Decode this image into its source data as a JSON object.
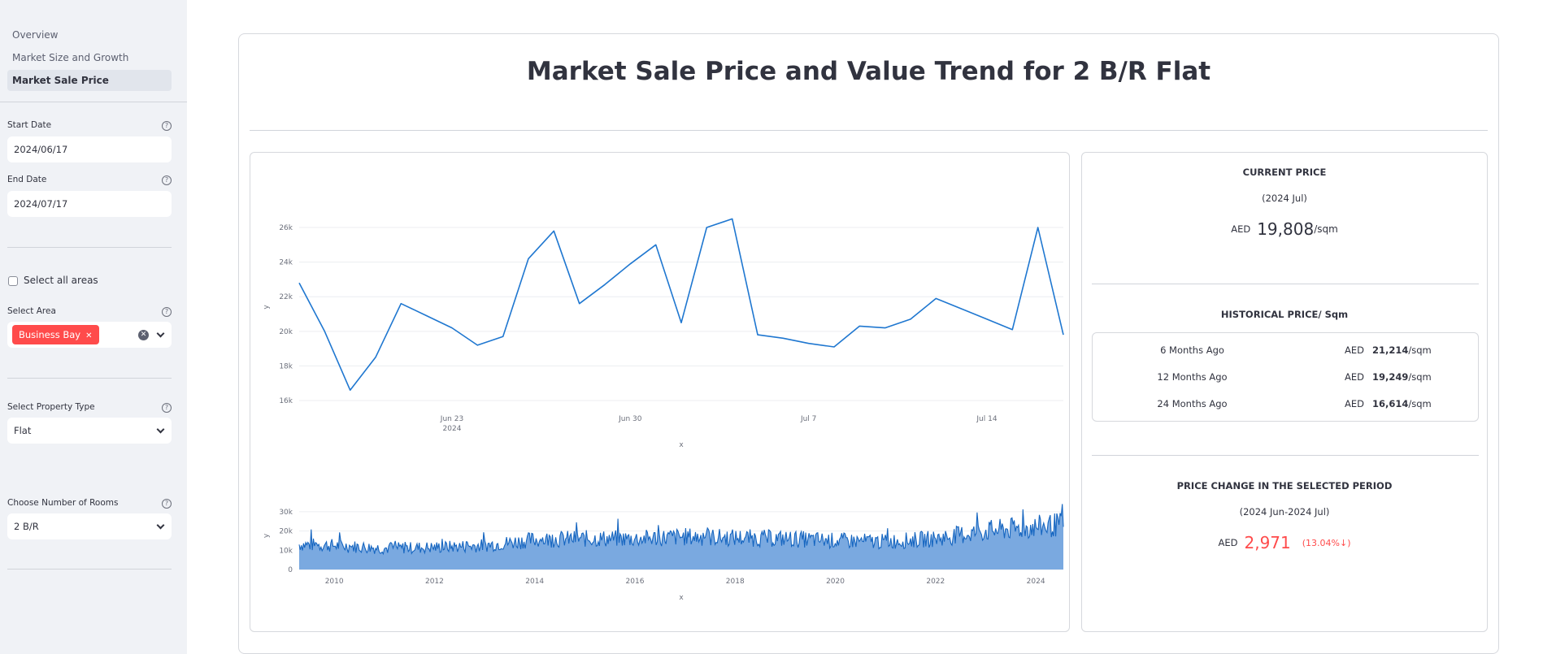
{
  "sidebar": {
    "nav": [
      "Overview",
      "Market Size and Growth",
      "Market Sale Price"
    ],
    "start_date": {
      "label": "Start Date",
      "value": "2024/06/17"
    },
    "end_date": {
      "label": "End Date",
      "value": "2024/07/17"
    },
    "select_all": {
      "label": "Select all areas"
    },
    "area": {
      "label": "Select Area",
      "tag": "Business Bay"
    },
    "property_type": {
      "label": "Select Property Type",
      "value": "Flat"
    },
    "rooms": {
      "label": "Choose Number of Rooms",
      "value": "2 B/R"
    },
    "help_glyph": "?"
  },
  "main": {
    "title": "Market Sale Price and Value Trend for 2 B/R Flat"
  },
  "metrics": {
    "current": {
      "heading": "CURRENT PRICE",
      "period": "(2024 Jul)",
      "currency": "AED",
      "value": "19,808",
      "unit": "/sqm"
    },
    "historical": {
      "heading": "HISTORICAL PRICE/ Sqm",
      "rows": [
        {
          "label": "6 Months Ago",
          "currency": "AED",
          "value": "21,214",
          "unit": "/sqm"
        },
        {
          "label": "12 Months Ago",
          "currency": "AED",
          "value": "19,249",
          "unit": "/sqm"
        },
        {
          "label": "24 Months Ago",
          "currency": "AED",
          "value": "16,614",
          "unit": "/sqm"
        }
      ]
    },
    "change": {
      "heading": "PRICE CHANGE IN THE SELECTED PERIOD",
      "period": "(2024 Jun-2024 Jul)",
      "currency": "AED",
      "value": "2,971",
      "pct": "(13.04%↓)",
      "color": "#ff4b4b"
    }
  },
  "chart_data": [
    {
      "type": "line",
      "x": [
        "2024-06-17",
        "2024-06-18",
        "2024-06-19",
        "2024-06-20",
        "2024-06-21",
        "2024-06-22",
        "2024-06-23",
        "2024-06-24",
        "2024-06-25",
        "2024-06-26",
        "2024-06-27",
        "2024-06-28",
        "2024-06-29",
        "2024-06-30",
        "2024-07-01",
        "2024-07-02",
        "2024-07-03",
        "2024-07-04",
        "2024-07-05",
        "2024-07-06",
        "2024-07-07",
        "2024-07-08",
        "2024-07-09",
        "2024-07-10",
        "2024-07-11",
        "2024-07-12",
        "2024-07-13",
        "2024-07-14",
        "2024-07-15",
        "2024-07-16",
        "2024-07-17"
      ],
      "y": [
        22800,
        20000,
        16600,
        18500,
        21600,
        20900,
        20200,
        19200,
        19700,
        24200,
        25800,
        21600,
        22700,
        23900,
        25000,
        20500,
        26000,
        26500,
        19800,
        19600,
        19300,
        19100,
        20300,
        20200,
        20700,
        21900,
        21300,
        20700,
        20100,
        26000,
        19800
      ],
      "xticks": [
        {
          "x": "2024-06-23",
          "label": "Jun 23",
          "sublabel": "2024"
        },
        {
          "x": "2024-06-30",
          "label": "Jun 30"
        },
        {
          "x": "2024-07-07",
          "label": "Jul 7"
        },
        {
          "x": "2024-07-14",
          "label": "Jul 14"
        }
      ],
      "yticks": [
        16000,
        18000,
        20000,
        22000,
        24000,
        26000
      ],
      "ytick_labels": [
        "16k",
        "18k",
        "20k",
        "22k",
        "24k",
        "26k"
      ],
      "xlabel": "x",
      "ylabel": "y",
      "ylim": [
        16000,
        26800
      ],
      "grid": true,
      "color": "#1f77d0"
    },
    {
      "type": "area",
      "x_range": [
        2009.3,
        2024.55
      ],
      "ylim": [
        0,
        35000
      ],
      "yticks": [
        0,
        10000,
        20000,
        30000
      ],
      "ytick_labels": [
        "0",
        "10k",
        "20k",
        "30k"
      ],
      "xticks": [
        2010,
        2012,
        2014,
        2016,
        2018,
        2020,
        2022,
        2024
      ],
      "xtick_labels": [
        "2010",
        "2012",
        "2014",
        "2016",
        "2018",
        "2020",
        "2022",
        "2024"
      ],
      "envelope": [
        {
          "x": 2009.3,
          "y": 13000
        },
        {
          "x": 2010,
          "y": 12500
        },
        {
          "x": 2011,
          "y": 11000
        },
        {
          "x": 2012,
          "y": 11500
        },
        {
          "x": 2013,
          "y": 12500
        },
        {
          "x": 2014,
          "y": 15500
        },
        {
          "x": 2015,
          "y": 16000
        },
        {
          "x": 2016,
          "y": 16000
        },
        {
          "x": 2017,
          "y": 17000
        },
        {
          "x": 2018,
          "y": 16500
        },
        {
          "x": 2019,
          "y": 16000
        },
        {
          "x": 2020,
          "y": 15000
        },
        {
          "x": 2021,
          "y": 14500
        },
        {
          "x": 2022,
          "y": 16000
        },
        {
          "x": 2023,
          "y": 20000
        },
        {
          "x": 2024,
          "y": 22000
        },
        {
          "x": 2024.55,
          "y": 23500
        }
      ],
      "xlabel": "x",
      "ylabel": "y",
      "line_color": "#1565c0",
      "fill_color": "#7aa9e0"
    }
  ]
}
